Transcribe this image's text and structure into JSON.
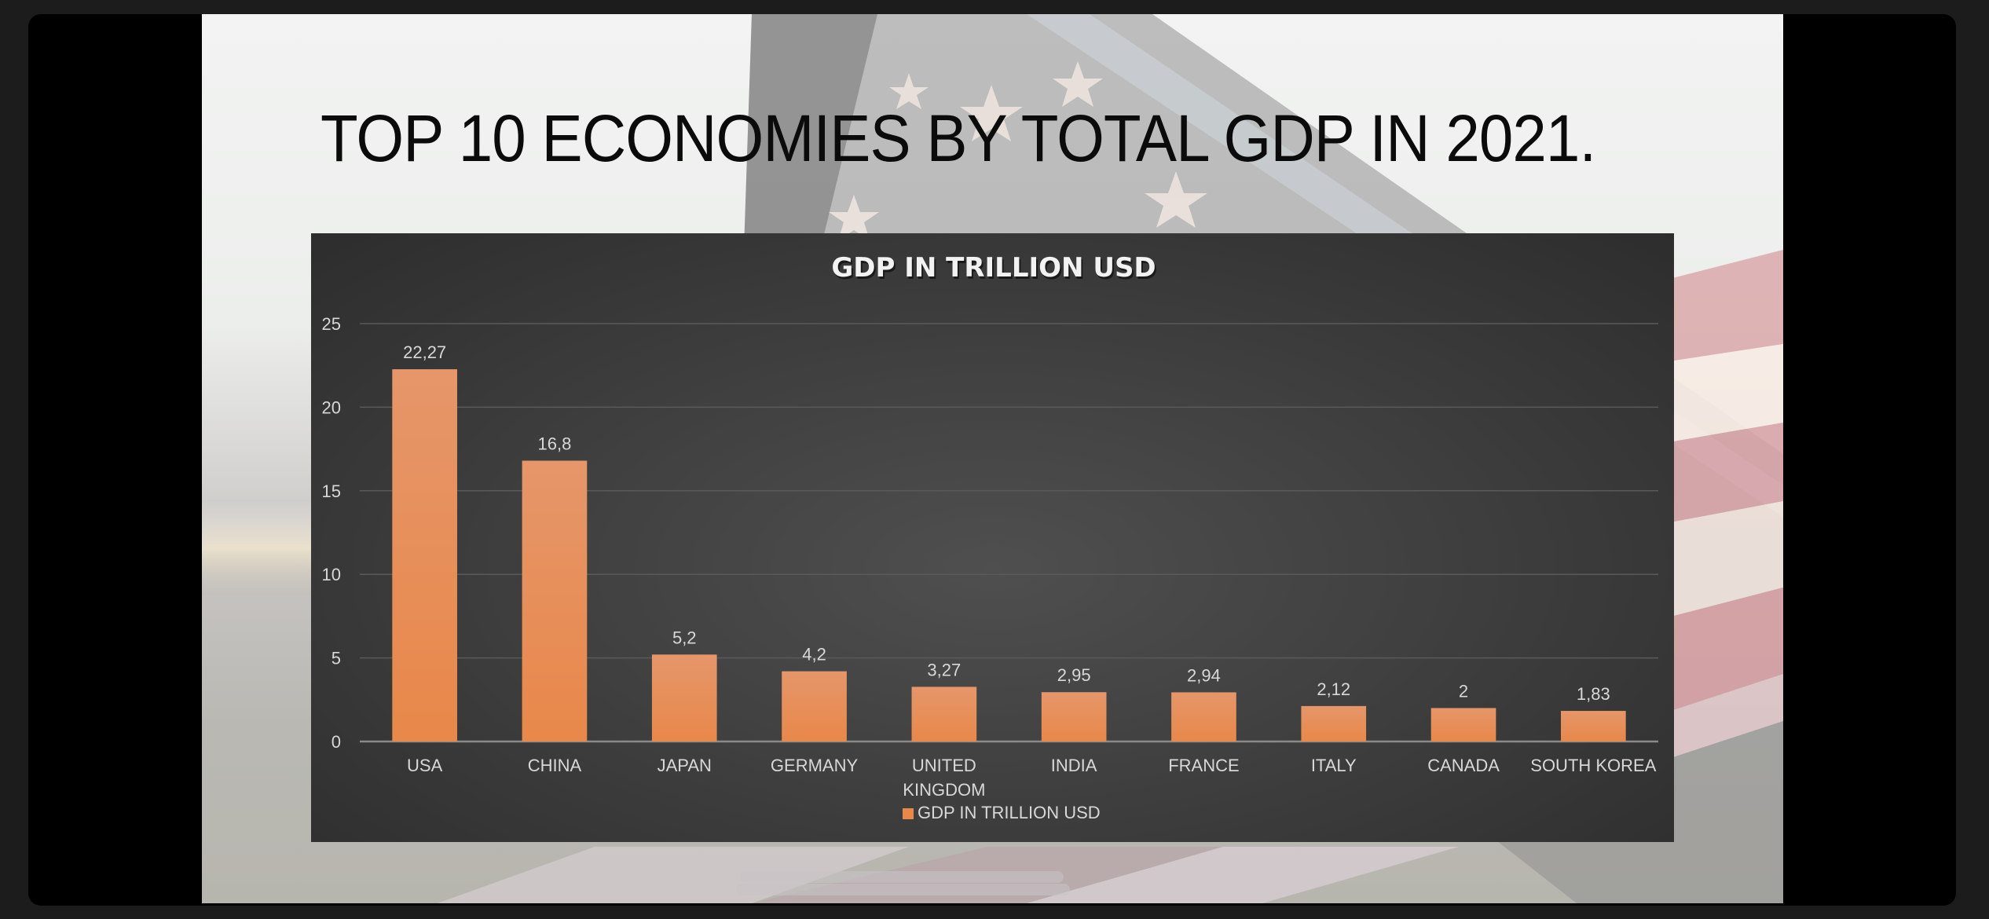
{
  "slide": {
    "title": "TOP 10 ECONOMIES BY TOTAL GDP IN 2021."
  },
  "colors": {
    "bar": "#e8884a",
    "bar_top": "#e6966a",
    "axis_text": "#d8d8d8",
    "gridline": "#5a5a5a",
    "baseline": "#8a8a8a"
  },
  "chart_data": {
    "type": "bar",
    "title": "GDP IN TRILLION USD",
    "xlabel": "",
    "ylabel": "",
    "categories": [
      "USA",
      "CHINA",
      "JAPAN",
      "GERMANY",
      "UNITED KINGDOM",
      "INDIA",
      "FRANCE",
      "ITALY",
      "CANADA",
      "SOUTH KOREA"
    ],
    "category_lines": [
      [
        "USA"
      ],
      [
        "CHINA"
      ],
      [
        "JAPAN"
      ],
      [
        "GERMANY"
      ],
      [
        "UNITED",
        "KINGDOM"
      ],
      [
        "INDIA"
      ],
      [
        "FRANCE"
      ],
      [
        "ITALY"
      ],
      [
        "CANADA"
      ],
      [
        "SOUTH KOREA"
      ]
    ],
    "series": [
      {
        "name": "GDP IN TRILLION USD",
        "values": [
          22.27,
          16.8,
          5.2,
          4.2,
          3.27,
          2.95,
          2.94,
          2.12,
          2,
          1.83
        ],
        "data_labels": [
          "22,27",
          "16,8",
          "5,2",
          "4,2",
          "3,27",
          "2,95",
          "2,94",
          "2,12",
          "2",
          "1,83"
        ]
      }
    ],
    "ylim": [
      0,
      25
    ],
    "yticks": [
      0,
      5,
      10,
      15,
      20,
      25
    ],
    "grid": true,
    "legend": {
      "position": "bottom",
      "entries": [
        "GDP IN TRILLION USD"
      ]
    }
  }
}
